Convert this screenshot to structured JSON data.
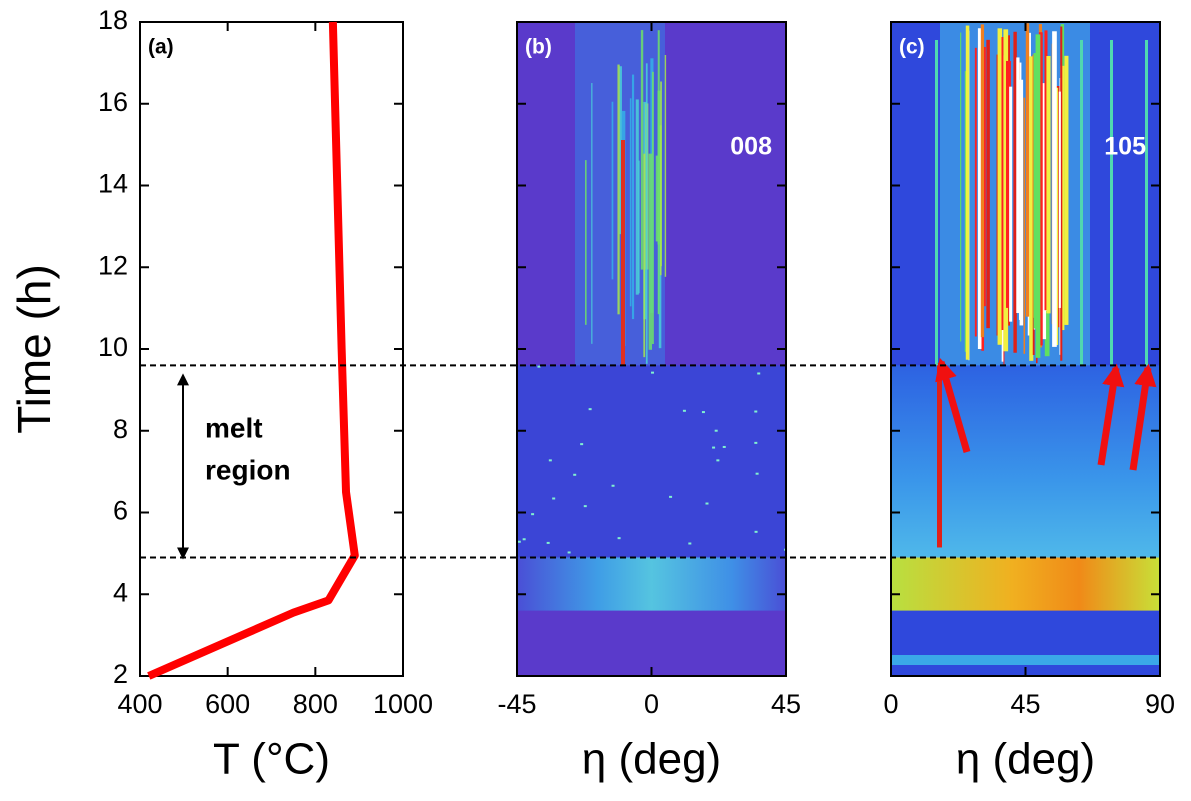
{
  "chart_data": [
    {
      "type": "line",
      "panel_label": "(a)",
      "xlabel": "T (°C)",
      "ylabel": "Time (h)",
      "x": [
        420,
        750,
        830,
        890,
        870,
        860,
        840
      ],
      "values": [
        2,
        3.55,
        3.85,
        4.95,
        6.5,
        10,
        18
      ],
      "color": "#ff0000",
      "xlim": [
        400,
        1000
      ],
      "xticks": [
        400,
        600,
        800,
        1000
      ],
      "ylim": [
        2,
        18
      ],
      "yticks": [
        2,
        4,
        6,
        8,
        10,
        12,
        14,
        16,
        18
      ],
      "annotation_lines": [
        "melt",
        "region"
      ]
    },
    {
      "type": "heatmap",
      "panel_label": "(b)",
      "xlabel": "η (deg)",
      "annotation": "008",
      "xlim": [
        -45,
        45
      ],
      "xticks": [
        -45,
        0,
        45
      ],
      "ylim": [
        2,
        18
      ],
      "yticks": [
        2,
        4,
        6,
        8,
        10,
        12,
        14,
        16,
        18
      ]
    },
    {
      "type": "heatmap",
      "panel_label": "(c)",
      "xlabel": "η (deg)",
      "annotation": "105",
      "xlim": [
        0,
        90
      ],
      "xticks": [
        0,
        45,
        90
      ],
      "ylim": [
        2,
        18
      ],
      "yticks": [
        2,
        4,
        6,
        8,
        10,
        12,
        14,
        16,
        18
      ]
    }
  ],
  "reference_lines": [
    9.6,
    4.9
  ]
}
